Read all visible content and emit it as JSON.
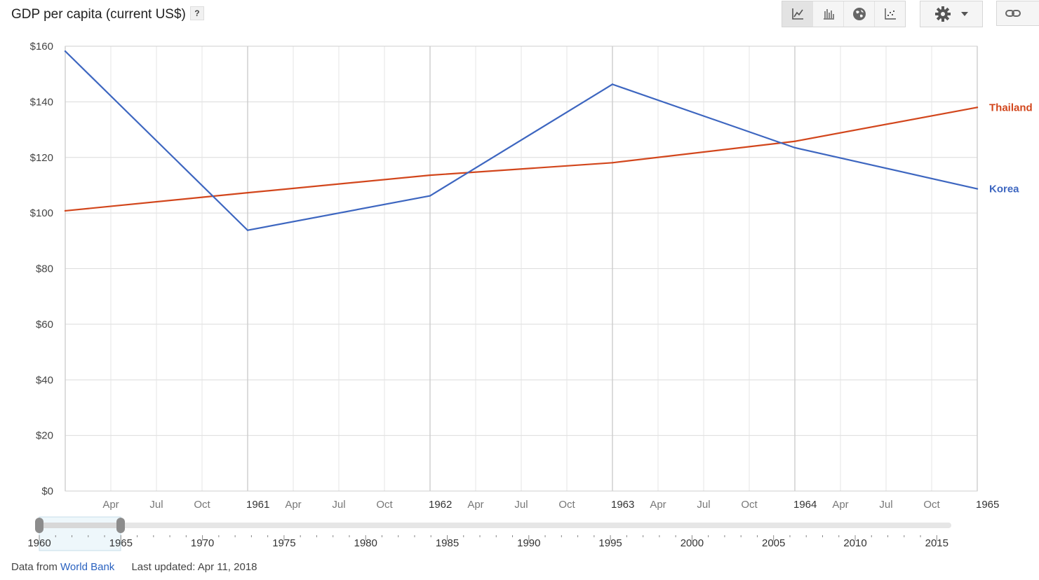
{
  "header": {
    "title": "GDP per capita (current US$)",
    "help_label": "?"
  },
  "toolbar": {
    "view_buttons": [
      {
        "icon": "line-chart-icon"
      },
      {
        "icon": "bar-chart-icon"
      },
      {
        "icon": "map-globe-icon"
      },
      {
        "icon": "scatter-chart-icon"
      }
    ],
    "settings_icon": "gear-icon",
    "link_icon": "link-icon"
  },
  "colors": {
    "korea": "#3d66c0",
    "thailand": "#d2461c",
    "grid": "#e4e4e4",
    "grid_major": "#cccccc"
  },
  "chart_data": {
    "type": "line",
    "title": "GDP per capita (current US$)",
    "xlabel": "",
    "ylabel": "",
    "x": [
      "1960",
      "1961",
      "1962",
      "1963",
      "1964",
      "1965"
    ],
    "x_tick_labels": [
      "Apr",
      "Jul",
      "Oct",
      "1961",
      "Apr",
      "Jul",
      "Oct",
      "1962",
      "Apr",
      "Jul",
      "Oct",
      "1963",
      "Apr",
      "Jul",
      "Oct",
      "1964",
      "Apr",
      "Jul",
      "Oct",
      "1965"
    ],
    "ylim": [
      0,
      160
    ],
    "y_ticks": [
      "$0",
      "$20",
      "$40",
      "$60",
      "$80",
      "$100",
      "$120",
      "$140",
      "$160"
    ],
    "grid": true,
    "legend": "inline-right",
    "series": [
      {
        "name": "Thailand",
        "color": "#d2461c",
        "values": [
          100.8,
          107.3,
          113.6,
          118.1,
          125.8,
          138.0
        ]
      },
      {
        "name": "Korea",
        "color": "#3d66c0",
        "values": [
          158.2,
          93.8,
          106.2,
          146.3,
          123.5,
          108.7
        ]
      }
    ]
  },
  "timeline": {
    "range": [
      "1960",
      "1965"
    ],
    "labels": [
      "1960",
      "1965",
      "1970",
      "1975",
      "1980",
      "1985",
      "1990",
      "1995",
      "2000",
      "2005",
      "2010",
      "2015"
    ]
  },
  "footer": {
    "source_prefix": "Data from",
    "source_link": "World Bank",
    "updated": "Last updated: Apr 11, 2018"
  }
}
